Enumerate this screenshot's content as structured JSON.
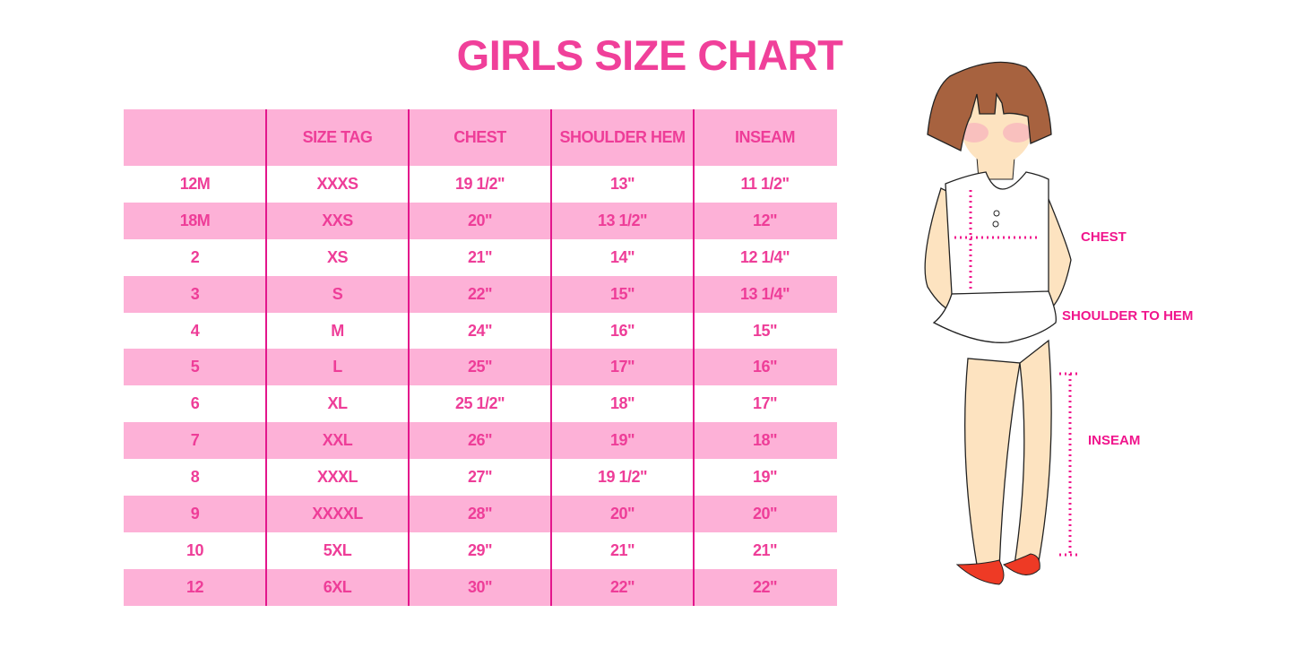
{
  "title": "GIRLS SIZE CHART",
  "chart_data": {
    "type": "table",
    "title": "GIRLS SIZE CHART",
    "columns": [
      "",
      "SIZE TAG",
      "CHEST",
      "SHOULDER HEM",
      "INSEAM"
    ],
    "rows": [
      [
        "12M",
        "XXXS",
        "19 1/2\"",
        "13\"",
        "11 1/2\""
      ],
      [
        "18M",
        "XXS",
        "20\"",
        "13 1/2\"",
        "12\""
      ],
      [
        "2",
        "XS",
        "21\"",
        "14\"",
        "12 1/4\""
      ],
      [
        "3",
        "S",
        "22\"",
        "15\"",
        "13 1/4\""
      ],
      [
        "4",
        "M",
        "24\"",
        "16\"",
        "15\""
      ],
      [
        "5",
        "L",
        "25\"",
        "17\"",
        "16\""
      ],
      [
        "6",
        "XL",
        "25 1/2\"",
        "18\"",
        "17\""
      ],
      [
        "7",
        "XXL",
        "26\"",
        "19\"",
        "18\""
      ],
      [
        "8",
        "XXXL",
        "27\"",
        "19 1/2\"",
        "19\""
      ],
      [
        "9",
        "XXXXL",
        "28\"",
        "20\"",
        "20\""
      ],
      [
        "10",
        "5XL",
        "29\"",
        "21\"",
        "21\""
      ],
      [
        "12",
        "6XL",
        "30\"",
        "22\"",
        "22\""
      ]
    ]
  },
  "figure": {
    "labels": {
      "chest": "CHEST",
      "shoulder": "SHOULDER TO HEM",
      "inseam": "INSEAM"
    }
  },
  "colors": {
    "accent": "#f0409a",
    "stripe": "#fdb1d7",
    "divider": "#e3168c"
  }
}
